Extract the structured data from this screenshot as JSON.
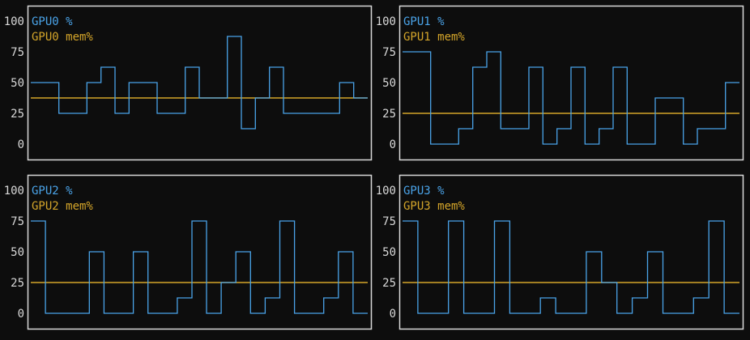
{
  "colors": {
    "background": "#0d0d0d",
    "frame": "#d8d8d8",
    "tick_text": "#d8d8d8",
    "usage": "#4aa3e8",
    "memory": "#d4a52a"
  },
  "chart_data": [
    {
      "type": "line",
      "step": true,
      "title": "",
      "xlabel": "",
      "ylabel": "",
      "ylim": [
        0,
        100
      ],
      "yticks": [
        "100",
        "75",
        "50",
        "25",
        "0"
      ],
      "legend": "top-left",
      "grid": false,
      "series": [
        {
          "name": "GPU0 %",
          "color": "#4aa3e8",
          "values": [
            50,
            50,
            25,
            25,
            50,
            62.5,
            25,
            50,
            50,
            25,
            25,
            62.5,
            37.5,
            37.5,
            87.5,
            12.5,
            37.5,
            62.5,
            25,
            25,
            25,
            25,
            50,
            37.5
          ]
        },
        {
          "name": "GPU0 mem%",
          "color": "#d4a52a",
          "values": [
            37.5,
            37.5,
            37.5,
            37.5,
            37.5,
            37.5,
            37.5,
            37.5,
            37.5,
            37.5,
            37.5,
            37.5,
            37.5,
            37.5,
            37.5,
            37.5,
            37.5,
            37.5,
            37.5,
            37.5,
            37.5,
            37.5,
            37.5,
            37.5
          ]
        }
      ]
    },
    {
      "type": "line",
      "step": true,
      "title": "",
      "xlabel": "",
      "ylabel": "",
      "ylim": [
        0,
        100
      ],
      "yticks": [
        "100",
        "75",
        "50",
        "25",
        "0"
      ],
      "legend": "top-left",
      "grid": false,
      "series": [
        {
          "name": "GPU1 %",
          "color": "#4aa3e8",
          "values": [
            75,
            75,
            0,
            0,
            12.5,
            62.5,
            75,
            12.5,
            12.5,
            62.5,
            0,
            12.5,
            62.5,
            0,
            12.5,
            62.5,
            0,
            0,
            37.5,
            37.5,
            0,
            12.5,
            12.5,
            50
          ]
        },
        {
          "name": "GPU1 mem%",
          "color": "#d4a52a",
          "values": [
            25,
            25,
            25,
            25,
            25,
            25,
            25,
            25,
            25,
            25,
            25,
            25,
            25,
            25,
            25,
            25,
            25,
            25,
            25,
            25,
            25,
            25,
            25,
            25
          ]
        }
      ]
    },
    {
      "type": "line",
      "step": true,
      "title": "",
      "xlabel": "",
      "ylabel": "",
      "ylim": [
        0,
        100
      ],
      "yticks": [
        "100",
        "75",
        "50",
        "25",
        "0"
      ],
      "legend": "top-left",
      "grid": false,
      "series": [
        {
          "name": "GPU2 %",
          "color": "#4aa3e8",
          "values": [
            75,
            0,
            0,
            0,
            50,
            0,
            0,
            50,
            0,
            0,
            12.5,
            75,
            0,
            25,
            50,
            0,
            12.5,
            75,
            0,
            0,
            12.5,
            50,
            0
          ]
        },
        {
          "name": "GPU2 mem%",
          "color": "#d4a52a",
          "values": [
            25,
            25,
            25,
            25,
            25,
            25,
            25,
            25,
            25,
            25,
            25,
            25,
            25,
            25,
            25,
            25,
            25,
            25,
            25,
            25,
            25,
            25,
            25
          ]
        }
      ]
    },
    {
      "type": "line",
      "step": true,
      "title": "",
      "xlabel": "",
      "ylabel": "",
      "ylim": [
        0,
        100
      ],
      "yticks": [
        "100",
        "75",
        "50",
        "25",
        "0"
      ],
      "legend": "top-left",
      "grid": false,
      "series": [
        {
          "name": "GPU3 %",
          "color": "#4aa3e8",
          "values": [
            75,
            0,
            0,
            75,
            0,
            0,
            75,
            0,
            0,
            12.5,
            0,
            0,
            50,
            25,
            0,
            12.5,
            50,
            0,
            0,
            12.5,
            75,
            0
          ]
        },
        {
          "name": "GPU3 mem%",
          "color": "#d4a52a",
          "values": [
            25,
            25,
            25,
            25,
            25,
            25,
            25,
            25,
            25,
            25,
            25,
            25,
            25,
            25,
            25,
            25,
            25,
            25,
            25,
            25,
            25,
            25
          ]
        }
      ]
    }
  ]
}
